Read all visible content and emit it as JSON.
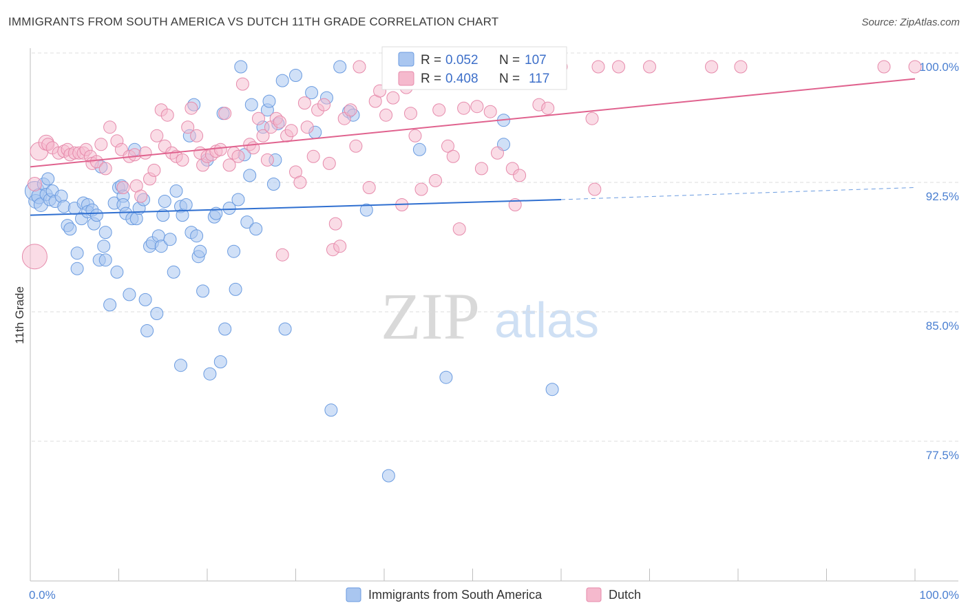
{
  "title": "IMMIGRANTS FROM SOUTH AMERICA VS DUTCH 11TH GRADE CORRELATION CHART",
  "source": "Source: ZipAtlas.com",
  "watermark": {
    "zip": "ZIP",
    "atlas": "atlas"
  },
  "colors": {
    "blue": "#6a9be0",
    "blue_fill": "#a9c6f0",
    "blue_line": "#2f6fd0",
    "pink": "#e68aab",
    "pink_fill": "#f5b9cd",
    "pink_line": "#e0628e",
    "tick_text": "#4a7fd1"
  },
  "chart_data": {
    "type": "scatter",
    "xlabel": "",
    "ylabel": "11th Grade",
    "xlim": [
      0,
      100
    ],
    "ylim": [
      70.5,
      101.5
    ],
    "x_tick_labels": [
      "0.0%",
      "100.0%"
    ],
    "y_ticks": [
      100,
      92.5,
      85,
      77.5
    ],
    "y_tick_labels": [
      "100.0%",
      "92.5%",
      "85.0%",
      "77.5%"
    ],
    "grid": "horizontal dashed",
    "legend_placement": "bottom-center",
    "stats": [
      {
        "r_label": "R = ",
        "r": "0.052",
        "n_label": "N = ",
        "n": "107"
      },
      {
        "r_label": "R = ",
        "r": "0.408",
        "n_label": "N = ",
        "n": "117"
      }
    ],
    "series": [
      {
        "name": "Immigrants from South America",
        "color": "#6a9be0",
        "trend": {
          "x": [
            0,
            60
          ],
          "y": [
            91.4,
            92.3
          ],
          "dashed_x": [
            60,
            100
          ],
          "dashed_y": [
            92.3,
            93.0
          ]
        },
        "points": [
          [
            0.5,
            92.8,
            14
          ],
          [
            0.6,
            92.2,
            10
          ],
          [
            1.0,
            92.5,
            11
          ],
          [
            1.2,
            92.0,
            10
          ],
          [
            1.5,
            93.2,
            9
          ],
          [
            1.8,
            92.6,
            9
          ],
          [
            2.0,
            93.5,
            9
          ],
          [
            2.2,
            92.3,
            9
          ],
          [
            2.5,
            92.8,
            9
          ],
          [
            2.8,
            92.2,
            9
          ],
          [
            3.5,
            92.5,
            9
          ],
          [
            3.8,
            91.9,
            9
          ],
          [
            4.2,
            90.8,
            9
          ],
          [
            4.5,
            90.6,
            9
          ],
          [
            5.0,
            91.8,
            9
          ],
          [
            5.3,
            89.2,
            9
          ],
          [
            5.3,
            88.3,
            9
          ],
          [
            5.8,
            91.2,
            9
          ],
          [
            6.0,
            92.1,
            9
          ],
          [
            6.5,
            92.0,
            9
          ],
          [
            6.5,
            91.6,
            9
          ],
          [
            7.0,
            91.7,
            9
          ],
          [
            7.2,
            90.9,
            9
          ],
          [
            7.5,
            91.4,
            9
          ],
          [
            7.8,
            88.8,
            9
          ],
          [
            8.0,
            94.2,
            9
          ],
          [
            8.3,
            89.6,
            9
          ],
          [
            8.5,
            88.8,
            9
          ],
          [
            8.5,
            90.4,
            9
          ],
          [
            9.0,
            86.2,
            9
          ],
          [
            9.5,
            92.1,
            9
          ],
          [
            9.8,
            88.1,
            9
          ],
          [
            10.0,
            93.0,
            9
          ],
          [
            10.3,
            93.1,
            9
          ],
          [
            10.5,
            92.5,
            9
          ],
          [
            10.5,
            92.0,
            9
          ],
          [
            10.8,
            91.5,
            9
          ],
          [
            11.2,
            86.8,
            9
          ],
          [
            11.5,
            91.2,
            9
          ],
          [
            11.8,
            95.2,
            9
          ],
          [
            12.0,
            91.2,
            9
          ],
          [
            12.3,
            91.8,
            9
          ],
          [
            12.8,
            92.3,
            9
          ],
          [
            13.0,
            86.5,
            9
          ],
          [
            13.2,
            84.7,
            9
          ],
          [
            13.5,
            89.6,
            9
          ],
          [
            13.8,
            89.8,
            9
          ],
          [
            14.3,
            85.7,
            9
          ],
          [
            14.5,
            90.2,
            9
          ],
          [
            14.8,
            89.6,
            9
          ],
          [
            15.0,
            91.4,
            9
          ],
          [
            15.2,
            92.2,
            9
          ],
          [
            15.8,
            90.0,
            9
          ],
          [
            16.2,
            88.1,
            9
          ],
          [
            16.5,
            92.8,
            9
          ],
          [
            17.0,
            91.9,
            9
          ],
          [
            17.2,
            91.4,
            9
          ],
          [
            17.0,
            82.7,
            9
          ],
          [
            17.6,
            92.0,
            9
          ],
          [
            18.0,
            96.0,
            9
          ],
          [
            18.2,
            90.4,
            9
          ],
          [
            18.5,
            97.8,
            9
          ],
          [
            18.8,
            90.2,
            9
          ],
          [
            19.0,
            89.0,
            9
          ],
          [
            19.2,
            89.3,
            9
          ],
          [
            19.5,
            87.0,
            9
          ],
          [
            20.0,
            94.6,
            9
          ],
          [
            20.3,
            82.2,
            9
          ],
          [
            20.8,
            91.3,
            9
          ],
          [
            21.0,
            91.5,
            9
          ],
          [
            21.5,
            82.9,
            9
          ],
          [
            21.8,
            97.3,
            9
          ],
          [
            22.0,
            84.8,
            9
          ],
          [
            22.5,
            91.8,
            9
          ],
          [
            23.0,
            89.3,
            9
          ],
          [
            23.2,
            87.1,
            9
          ],
          [
            23.5,
            92.3,
            9
          ],
          [
            23.8,
            100.0,
            9
          ],
          [
            24.2,
            94.9,
            9
          ],
          [
            24.5,
            91.0,
            9
          ],
          [
            24.8,
            93.7,
            9
          ],
          [
            25.0,
            97.8,
            9
          ],
          [
            25.5,
            90.6,
            9
          ],
          [
            26.3,
            96.5,
            9
          ],
          [
            26.8,
            97.5,
            9
          ],
          [
            27.0,
            98.0,
            9
          ],
          [
            27.5,
            93.2,
            9
          ],
          [
            27.7,
            94.6,
            9
          ],
          [
            28.0,
            96.7,
            9
          ],
          [
            28.5,
            99.2,
            9
          ],
          [
            28.8,
            84.8,
            9
          ],
          [
            30.0,
            99.5,
            9
          ],
          [
            31.8,
            98.5,
            9
          ],
          [
            32.2,
            96.2,
            9
          ],
          [
            33.5,
            98.2,
            9
          ],
          [
            34.0,
            80.1,
            9
          ],
          [
            35.0,
            100.0,
            9
          ],
          [
            36.0,
            97.4,
            9
          ],
          [
            36.5,
            97.2,
            9
          ],
          [
            38.0,
            91.7,
            9
          ],
          [
            40.5,
            76.3,
            9
          ],
          [
            44.0,
            95.2,
            9
          ],
          [
            47.0,
            82.0,
            9
          ],
          [
            53.5,
            96.9,
            9
          ],
          [
            53.5,
            95.5,
            9
          ],
          [
            59.0,
            81.3,
            9
          ]
        ]
      },
      {
        "name": "Dutch",
        "color": "#e68aab",
        "trend": {
          "x": [
            0,
            100
          ],
          "y": [
            94.2,
            99.3
          ]
        },
        "points": [
          [
            0.5,
            89.0,
            18
          ],
          [
            0.5,
            93.2,
            10
          ],
          [
            1.0,
            95.1,
            13
          ],
          [
            1.8,
            95.6,
            11
          ],
          [
            2.0,
            95.5,
            9
          ],
          [
            2.5,
            95.3,
            9
          ],
          [
            3.2,
            95.0,
            9
          ],
          [
            3.8,
            95.1,
            9
          ],
          [
            4.2,
            95.2,
            9
          ],
          [
            4.5,
            94.9,
            9
          ],
          [
            5.0,
            95.0,
            9
          ],
          [
            5.5,
            95.0,
            9
          ],
          [
            6.0,
            95.0,
            9
          ],
          [
            6.3,
            95.2,
            9
          ],
          [
            6.8,
            94.8,
            9
          ],
          [
            7.0,
            94.4,
            9
          ],
          [
            7.5,
            94.5,
            9
          ],
          [
            8.0,
            95.5,
            9
          ],
          [
            8.5,
            94.1,
            9
          ],
          [
            9.0,
            96.5,
            9
          ],
          [
            9.8,
            95.7,
            9
          ],
          [
            10.3,
            95.2,
            9
          ],
          [
            10.5,
            93.0,
            9
          ],
          [
            11.2,
            94.8,
            9
          ],
          [
            11.8,
            94.9,
            9
          ],
          [
            12.0,
            93.1,
            9
          ],
          [
            12.5,
            92.5,
            9
          ],
          [
            13.0,
            95.0,
            9
          ],
          [
            13.5,
            93.5,
            9
          ],
          [
            14.0,
            94.0,
            9
          ],
          [
            14.3,
            96.0,
            9
          ],
          [
            14.8,
            97.5,
            9
          ],
          [
            15.2,
            95.4,
            9
          ],
          [
            15.5,
            97.2,
            9
          ],
          [
            16.0,
            95.0,
            9
          ],
          [
            16.5,
            94.8,
            9
          ],
          [
            17.2,
            94.6,
            9
          ],
          [
            17.8,
            96.5,
            9
          ],
          [
            18.2,
            97.6,
            9
          ],
          [
            18.8,
            96.0,
            9
          ],
          [
            19.2,
            95.0,
            9
          ],
          [
            19.5,
            94.3,
            9
          ],
          [
            20.0,
            94.8,
            9
          ],
          [
            20.5,
            94.9,
            9
          ],
          [
            21.0,
            95.1,
            9
          ],
          [
            21.5,
            95.2,
            9
          ],
          [
            22.0,
            97.3,
            9
          ],
          [
            22.5,
            94.3,
            9
          ],
          [
            23.0,
            95.0,
            9
          ],
          [
            23.5,
            94.8,
            9
          ],
          [
            24.0,
            99.0,
            9
          ],
          [
            24.8,
            95.5,
            9
          ],
          [
            25.2,
            95.3,
            9
          ],
          [
            25.8,
            97.0,
            9
          ],
          [
            26.3,
            96.0,
            9
          ],
          [
            26.8,
            94.6,
            9
          ],
          [
            27.2,
            96.5,
            9
          ],
          [
            27.8,
            97.0,
            9
          ],
          [
            28.2,
            96.8,
            9
          ],
          [
            28.5,
            89.1,
            9
          ],
          [
            29.0,
            96.0,
            9
          ],
          [
            29.5,
            96.3,
            9
          ],
          [
            30.0,
            93.9,
            9
          ],
          [
            30.5,
            93.3,
            9
          ],
          [
            31.0,
            97.9,
            9
          ],
          [
            31.3,
            96.5,
            9
          ],
          [
            32.0,
            94.8,
            9
          ],
          [
            32.5,
            97.5,
            9
          ],
          [
            33.2,
            97.8,
            9
          ],
          [
            33.8,
            94.4,
            9
          ],
          [
            34.2,
            89.4,
            9
          ],
          [
            34.5,
            90.9,
            9
          ],
          [
            35.0,
            89.6,
            9
          ],
          [
            35.5,
            97.0,
            9
          ],
          [
            36.2,
            97.5,
            9
          ],
          [
            36.8,
            95.4,
            9
          ],
          [
            37.2,
            100.0,
            9
          ],
          [
            38.3,
            93.0,
            9
          ],
          [
            39.0,
            98.0,
            9
          ],
          [
            39.5,
            98.6,
            9
          ],
          [
            40.2,
            97.2,
            9
          ],
          [
            40.5,
            99.2,
            9
          ],
          [
            41.0,
            98.2,
            9
          ],
          [
            41.5,
            99.5,
            9
          ],
          [
            42.0,
            92.0,
            9
          ],
          [
            42.5,
            98.8,
            9
          ],
          [
            43.0,
            97.3,
            9
          ],
          [
            43.5,
            96.0,
            9
          ],
          [
            44.2,
            92.9,
            9
          ],
          [
            44.8,
            100.0,
            9
          ],
          [
            45.8,
            93.4,
            9
          ],
          [
            46.2,
            97.5,
            9
          ],
          [
            47.2,
            95.4,
            9
          ],
          [
            47.8,
            94.8,
            9
          ],
          [
            48.5,
            90.6,
            9
          ],
          [
            49.0,
            97.6,
            9
          ],
          [
            50.5,
            97.7,
            9
          ],
          [
            51.0,
            94.1,
            9
          ],
          [
            52.0,
            97.4,
            9
          ],
          [
            52.8,
            95.0,
            9
          ],
          [
            54.5,
            94.1,
            9
          ],
          [
            54.8,
            92.0,
            9
          ],
          [
            55.3,
            93.7,
            9
          ],
          [
            57.5,
            97.8,
            9
          ],
          [
            58.5,
            97.6,
            9
          ],
          [
            60.0,
            100.0,
            9
          ],
          [
            63.5,
            97.0,
            9
          ],
          [
            63.8,
            92.9,
            9
          ],
          [
            64.2,
            100.0,
            9
          ],
          [
            66.5,
            100.0,
            9
          ],
          [
            70.0,
            100.0,
            9
          ],
          [
            77.0,
            100.0,
            9
          ],
          [
            80.3,
            100.0,
            9
          ],
          [
            96.5,
            100.0,
            9
          ],
          [
            100.0,
            100.0,
            9
          ]
        ]
      }
    ]
  }
}
